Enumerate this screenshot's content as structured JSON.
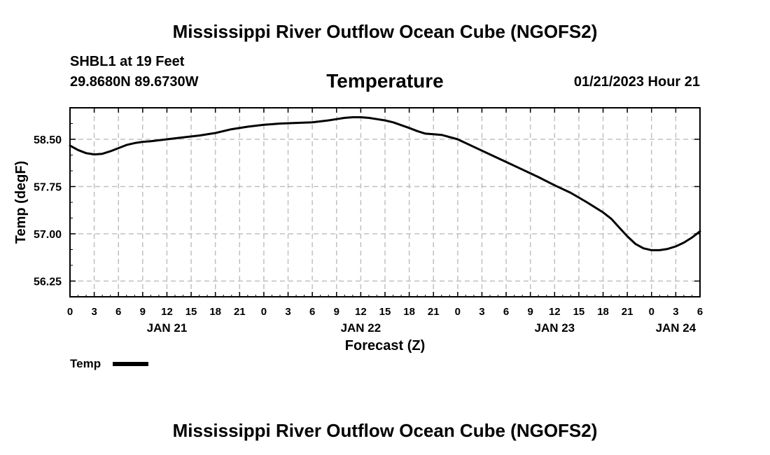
{
  "header": {
    "title": "Mississippi River Outflow Ocean Cube (NGOFS2)",
    "station": "SHBL1 at 19 Feet",
    "coords": "29.8680N  89.6730W",
    "variable": "Temperature",
    "datetime": "01/21/2023 Hour 21"
  },
  "footer": {
    "title": "Mississippi River Outflow Ocean Cube (NGOFS2)"
  },
  "legend": {
    "label": "Temp"
  },
  "colors": {
    "line": "#000000",
    "grid": "#c0c0c0"
  },
  "chart_data": {
    "type": "line",
    "title": "Temperature",
    "xlabel": "Forecast (Z)",
    "ylabel": "Temp (degF)",
    "xlim": [
      0,
      78
    ],
    "ylim": [
      56.0,
      59.0
    ],
    "x_ticks": [
      0,
      3,
      6,
      9,
      12,
      15,
      18,
      21,
      24,
      27,
      30,
      33,
      36,
      39,
      42,
      45,
      48,
      51,
      54,
      57,
      60,
      63,
      66,
      69,
      72,
      75,
      78
    ],
    "x_tick_labels": [
      "0",
      "3",
      "6",
      "9",
      "12",
      "15",
      "18",
      "21",
      "0",
      "3",
      "6",
      "9",
      "12",
      "15",
      "18",
      "21",
      "0",
      "3",
      "6",
      "9",
      "12",
      "15",
      "18",
      "21",
      "0",
      "3",
      "6"
    ],
    "date_labels": [
      {
        "label": "JAN 21",
        "x": 12
      },
      {
        "label": "JAN 22",
        "x": 36
      },
      {
        "label": "JAN 23",
        "x": 60
      },
      {
        "label": "JAN 24",
        "x": 75
      }
    ],
    "y_ticks": [
      56.25,
      57.0,
      57.75,
      58.5
    ],
    "y_tick_labels": [
      "56.25",
      "57.00",
      "57.75",
      "58.50"
    ],
    "grid": true,
    "legend_position": "bottom-left",
    "series": [
      {
        "name": "Temp",
        "x": [
          0,
          1,
          2,
          3,
          4,
          5,
          6,
          7,
          8,
          9,
          10,
          12,
          14,
          16,
          18,
          20,
          22,
          24,
          26,
          28,
          30,
          32,
          33,
          34,
          35,
          36,
          37,
          38,
          39,
          40,
          42,
          43,
          44,
          45,
          46,
          48,
          50,
          52,
          54,
          56,
          58,
          60,
          62,
          64,
          66,
          67,
          68,
          69,
          70,
          71,
          72,
          73,
          74,
          75,
          76,
          77,
          78
        ],
        "y": [
          58.4,
          58.33,
          58.28,
          58.26,
          58.27,
          58.31,
          58.36,
          58.41,
          58.44,
          58.46,
          58.47,
          58.5,
          58.53,
          58.56,
          58.6,
          58.66,
          58.7,
          58.73,
          58.75,
          58.76,
          58.77,
          58.8,
          58.82,
          58.84,
          58.85,
          58.85,
          58.84,
          58.82,
          58.8,
          58.77,
          58.68,
          58.63,
          58.59,
          58.58,
          58.57,
          58.5,
          58.38,
          58.26,
          58.14,
          58.02,
          57.9,
          57.77,
          57.65,
          57.5,
          57.34,
          57.24,
          57.1,
          56.96,
          56.84,
          56.77,
          56.74,
          56.74,
          56.76,
          56.8,
          56.86,
          56.94,
          57.04
        ]
      }
    ]
  }
}
